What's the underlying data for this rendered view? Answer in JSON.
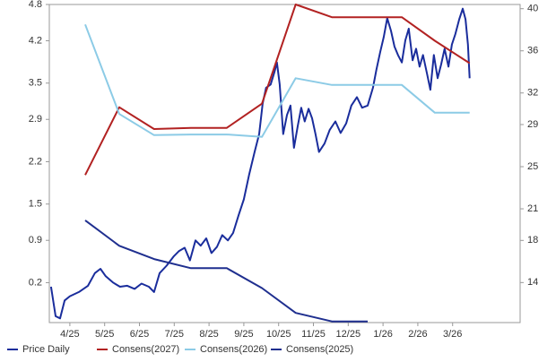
{
  "chart_data": {
    "type": "line",
    "xlim": [
      -0.59,
      12.94
    ],
    "xticks": [
      {
        "value": 0,
        "label": "4/25"
      },
      {
        "value": 1,
        "label": "5/25"
      },
      {
        "value": 2,
        "label": "6/25"
      },
      {
        "value": 3,
        "label": "7/25"
      },
      {
        "value": 4,
        "label": "8/25"
      },
      {
        "value": 5,
        "label": "9/25"
      },
      {
        "value": 6,
        "label": "10/25"
      },
      {
        "value": 7,
        "label": "11/25"
      },
      {
        "value": 8,
        "label": "12/25"
      },
      {
        "value": 9,
        "label": "1/26"
      },
      {
        "value": 10,
        "label": "2/26"
      },
      {
        "value": 11,
        "label": "3/26"
      }
    ],
    "ylim": [
      -0.46,
      4.8
    ],
    "yticks": [
      4.8,
      4.2,
      3.5,
      2.9,
      2.2,
      1.5,
      0.9,
      0.2
    ],
    "y2lim": [
      10.2,
      40.4
    ],
    "y2ticks": [
      40,
      36,
      32,
      29,
      25,
      21,
      18,
      14
    ],
    "legend": "bottom",
    "series": [
      {
        "name": "Price Daily",
        "color": "#1a2d9c",
        "axis": "y2",
        "x": [
          -0.54,
          -0.41,
          -0.28,
          -0.15,
          0,
          0.26,
          0.52,
          0.72,
          0.88,
          1.03,
          1.24,
          1.44,
          1.65,
          1.86,
          2.06,
          2.27,
          2.42,
          2.58,
          2.78,
          2.99,
          3.14,
          3.3,
          3.45,
          3.61,
          3.76,
          3.92,
          4.07,
          4.23,
          4.38,
          4.54,
          4.69,
          4.85,
          5.0,
          5.15,
          5.31,
          5.44,
          5.54,
          5.64,
          5.77,
          5.88,
          5.95,
          6.03,
          6.13,
          6.24,
          6.34,
          6.44,
          6.55,
          6.65,
          6.75,
          6.86,
          6.96,
          7.06,
          7.16,
          7.32,
          7.47,
          7.63,
          7.78,
          7.94,
          8.09,
          8.25,
          8.4,
          8.56,
          8.71,
          8.81,
          8.92,
          9.02,
          9.12,
          9.23,
          9.33,
          9.43,
          9.54,
          9.64,
          9.74,
          9.85,
          9.95,
          10.05,
          10.15,
          10.26,
          10.36,
          10.46,
          10.57,
          10.67,
          10.77,
          10.88,
          10.98,
          11.08,
          11.19,
          11.29,
          11.37,
          11.44,
          11.49
        ],
        "values": [
          13.6,
          10.8,
          10.6,
          12.3,
          12.7,
          13.1,
          13.7,
          14.9,
          15.3,
          14.6,
          14.0,
          13.6,
          13.7,
          13.4,
          13.9,
          13.6,
          13.1,
          14.9,
          15.6,
          16.5,
          17.0,
          17.3,
          16.1,
          18.0,
          17.5,
          18.2,
          16.8,
          17.4,
          18.5,
          18.0,
          18.7,
          20.4,
          21.9,
          24.2,
          26.4,
          28.1,
          31.0,
          32.5,
          32.8,
          34.0,
          34.9,
          32.8,
          28.1,
          29.9,
          30.8,
          26.8,
          28.9,
          30.6,
          29.3,
          30.5,
          29.6,
          28.1,
          26.4,
          27.2,
          28.5,
          29.3,
          28.2,
          29.1,
          30.8,
          31.6,
          30.6,
          30.8,
          32.5,
          34.2,
          35.9,
          37.3,
          39.1,
          37.9,
          36.4,
          35.6,
          34.9,
          37.0,
          38.1,
          35.1,
          36.2,
          34.5,
          35.6,
          33.9,
          32.3,
          35.6,
          33.4,
          34.7,
          36.2,
          34.5,
          36.6,
          37.6,
          39.0,
          40.0,
          39.0,
          36.6,
          33.4
        ]
      },
      {
        "name": "Consens(2027)",
        "color": "#b22222",
        "x": [
          0.44,
          1.42,
          2.42,
          3.48,
          4.51,
          5.52,
          6.49,
          7.53,
          8.56,
          9.54,
          10.49,
          11.49
        ],
        "values": [
          1.98,
          3.1,
          2.74,
          2.76,
          2.76,
          3.16,
          4.8,
          4.59,
          4.59,
          4.59,
          4.2,
          3.83
        ]
      },
      {
        "name": "Consens(2026)",
        "color": "#8ccbe6",
        "x": [
          0.44,
          1.42,
          2.42,
          3.48,
          4.51,
          5.52,
          6.49,
          7.53,
          8.56,
          9.54,
          10.49,
          11.49
        ],
        "values": [
          4.47,
          2.99,
          2.64,
          2.65,
          2.65,
          2.61,
          3.58,
          3.47,
          3.47,
          3.47,
          3.01,
          3.01
        ]
      },
      {
        "name": "Consens(2025)",
        "color": "#1f2f8f",
        "x": [
          0.44,
          1.42,
          2.42,
          3.48,
          4.51,
          5.52,
          6.49,
          7.53,
          8.56
        ],
        "values": [
          1.23,
          0.81,
          0.59,
          0.44,
          0.44,
          0.11,
          -0.3,
          -0.44,
          -0.44
        ]
      }
    ]
  }
}
